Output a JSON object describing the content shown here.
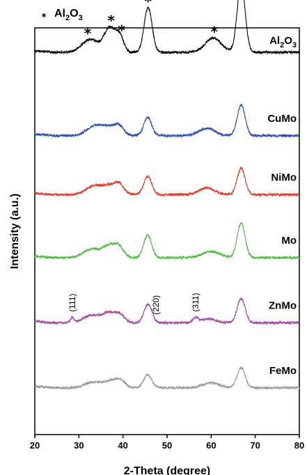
{
  "chart_data": {
    "type": "line",
    "xlabel": "2-Theta (degree)",
    "ylabel": "Intensity (a.u.)",
    "xlim": [
      20,
      80
    ],
    "xticks": [
      "20",
      "30",
      "40",
      "50",
      "60",
      "70",
      "80"
    ],
    "legend": {
      "marker": "*",
      "text": "Al",
      "sub": "2",
      "text2": "O",
      "sub2": "3"
    },
    "peak_marker": "*",
    "series": [
      {
        "name": "Al2O3",
        "label": "Al",
        "label_sub": "2",
        "label2": "O",
        "label2_sub": "3",
        "color": "#000000",
        "baseline": 0.06,
        "ymax": 0.09,
        "peaks": [
          [
            32.5,
            0.032,
            1.8
          ],
          [
            37.0,
            0.06,
            1.3
          ],
          [
            39.3,
            0.035,
            0.9
          ],
          [
            45.7,
            0.11,
            0.9
          ],
          [
            60.5,
            0.035,
            1.8
          ],
          [
            66.8,
            0.17,
            0.9
          ]
        ],
        "star_x": [
          32,
          37.3,
          39.7,
          45.7,
          60.7,
          66.8
        ]
      },
      {
        "name": "CuMo",
        "label": "CuMo",
        "color": "#2f4fa8",
        "baseline": 0.265,
        "ymax": 0.09,
        "peaks": [
          [
            33.5,
            0.022,
            1.8
          ],
          [
            37.0,
            0.02,
            1.8
          ],
          [
            39.2,
            0.018,
            1.0
          ],
          [
            45.6,
            0.045,
            0.9
          ],
          [
            59.0,
            0.018,
            1.8
          ],
          [
            66.8,
            0.075,
            0.9
          ]
        ]
      },
      {
        "name": "NiMo",
        "label": "NiMo",
        "color": "#e03b2c",
        "baseline": 0.41,
        "ymax": 0.09,
        "peaks": [
          [
            33.3,
            0.02,
            1.8
          ],
          [
            37.2,
            0.022,
            1.8
          ],
          [
            39.2,
            0.018,
            1.0
          ],
          [
            45.6,
            0.045,
            0.9
          ],
          [
            59.0,
            0.016,
            1.8
          ],
          [
            66.8,
            0.065,
            0.9
          ]
        ]
      },
      {
        "name": "Mo",
        "label": "Mo",
        "color": "#56b848",
        "baseline": 0.565,
        "ymax": 0.09,
        "peaks": [
          [
            32.8,
            0.02,
            1.8
          ],
          [
            37.0,
            0.03,
            1.6
          ],
          [
            39.2,
            0.02,
            1.0
          ],
          [
            45.6,
            0.055,
            0.9
          ],
          [
            60.0,
            0.015,
            2.0
          ],
          [
            66.8,
            0.085,
            0.9
          ]
        ]
      },
      {
        "name": "ZnMo",
        "label": "ZnMo",
        "color": "#a24ca4",
        "baseline": 0.725,
        "ymax": 0.09,
        "peaks": [
          [
            28.5,
            0.012,
            0.4
          ],
          [
            32.8,
            0.018,
            1.8
          ],
          [
            37.0,
            0.025,
            1.6
          ],
          [
            39.5,
            0.015,
            1.0
          ],
          [
            45.7,
            0.045,
            0.9
          ],
          [
            56.5,
            0.012,
            0.6
          ],
          [
            59.5,
            0.01,
            1.5
          ],
          [
            66.8,
            0.06,
            0.9
          ]
        ],
        "annotations": [
          {
            "text": "(111)",
            "x": 28.5
          },
          {
            "text": "(220)",
            "x": 47.5
          },
          {
            "text": "(311)",
            "x": 56.5
          }
        ]
      },
      {
        "name": "FeMo",
        "label": "FeMo",
        "color": "#9a9a9a",
        "baseline": 0.885,
        "ymax": 0.09,
        "peaks": [
          [
            33.0,
            0.013,
            1.8
          ],
          [
            37.5,
            0.018,
            1.8
          ],
          [
            39.5,
            0.012,
            1.0
          ],
          [
            45.6,
            0.032,
            0.9
          ],
          [
            60.0,
            0.012,
            1.8
          ],
          [
            66.8,
            0.05,
            0.9
          ]
        ]
      }
    ]
  }
}
